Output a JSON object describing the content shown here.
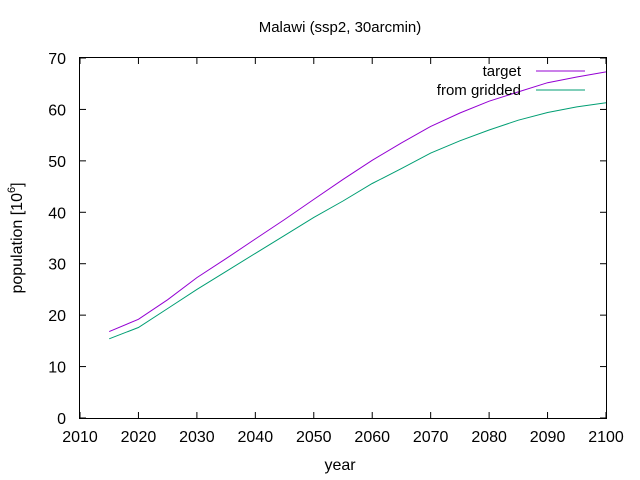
{
  "chart_data": {
    "type": "line",
    "title": "Malawi (ssp2, 30arcmin)",
    "xlabel": "year",
    "ylabel_prefix": "population [10",
    "ylabel_exp": "6",
    "ylabel_suffix": "]",
    "xlim": [
      2010,
      2100
    ],
    "ylim": [
      0,
      70
    ],
    "xticks": [
      2010,
      2020,
      2030,
      2040,
      2050,
      2060,
      2070,
      2080,
      2090,
      2100
    ],
    "yticks": [
      0,
      10,
      20,
      30,
      40,
      50,
      60,
      70
    ],
    "grid": false,
    "legend_position": "top-right",
    "series": [
      {
        "name": "target",
        "color": "#9400d3",
        "x": [
          2015,
          2020,
          2025,
          2030,
          2035,
          2040,
          2045,
          2050,
          2055,
          2060,
          2065,
          2070,
          2075,
          2080,
          2085,
          2090,
          2095,
          2100
        ],
        "y": [
          16.8,
          19.2,
          23.0,
          27.3,
          31.0,
          34.8,
          38.6,
          42.5,
          46.4,
          50.1,
          53.5,
          56.7,
          59.3,
          61.6,
          63.4,
          65.2,
          66.3,
          67.3
        ]
      },
      {
        "name": "from gridded",
        "color": "#009e73",
        "x": [
          2015,
          2020,
          2025,
          2030,
          2035,
          2040,
          2045,
          2050,
          2055,
          2060,
          2065,
          2070,
          2075,
          2080,
          2085,
          2090,
          2095,
          2100
        ],
        "y": [
          15.4,
          17.6,
          21.3,
          25.0,
          28.5,
          32.0,
          35.5,
          39.0,
          42.2,
          45.6,
          48.5,
          51.5,
          53.9,
          56.0,
          57.9,
          59.4,
          60.5,
          61.3
        ]
      }
    ]
  }
}
